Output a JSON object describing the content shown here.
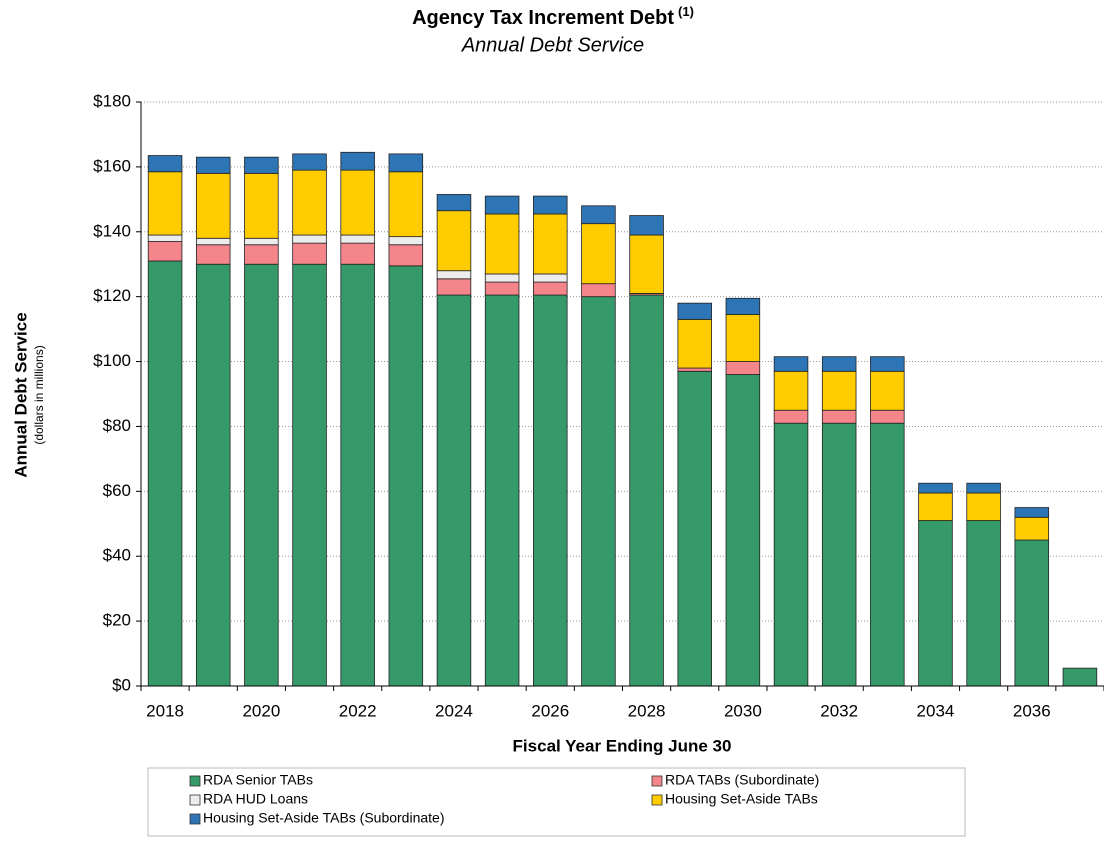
{
  "chart_data": {
    "type": "stacked_bar",
    "title": "Agency Tax Increment Debt",
    "title_note": "(1)",
    "subtitle": "Annual Debt Service",
    "y_label": "Annual Debt Service",
    "y_sublabel": "(dollars in millions)",
    "x_label": "Fiscal Year Ending June 30",
    "categories": [
      "2018",
      null,
      "2020",
      null,
      "2022",
      null,
      "2024",
      null,
      "2026",
      null,
      "2028",
      null,
      "2030",
      null,
      "2032",
      null,
      "2034",
      null,
      "2036",
      null
    ],
    "series": [
      {
        "name": "RDA Senior TABs",
        "color": "#36996a",
        "values": [
          131,
          130,
          130,
          130,
          130,
          129.5,
          120.5,
          120.5,
          120.5,
          120,
          120.5,
          97,
          96,
          81,
          81,
          81,
          51,
          51,
          45,
          5.5
        ]
      },
      {
        "name": "RDA TABs (Subordinate)",
        "color": "#f4858a",
        "values": [
          6,
          6,
          6,
          6.5,
          6.5,
          6.5,
          5,
          4,
          4,
          4,
          0.5,
          1,
          4,
          4,
          4,
          4,
          0,
          0,
          0,
          0
        ]
      },
      {
        "name": "RDA HUD Loans",
        "color": "#ececec",
        "values": [
          2,
          2,
          2,
          2.5,
          2.5,
          2.5,
          2.5,
          2.5,
          2.5,
          0,
          0,
          0,
          0,
          0,
          0,
          0,
          0,
          0,
          0,
          0
        ]
      },
      {
        "name": "Housing Set-Aside TABs",
        "color": "#ffcc00",
        "values": [
          19.5,
          20,
          20,
          20,
          20,
          20,
          18.5,
          18.5,
          18.5,
          18.5,
          18,
          15,
          14.5,
          12,
          12,
          12,
          8.5,
          8.5,
          7,
          0
        ]
      },
      {
        "name": "Housing Set-Aside TABs (Subordinate)",
        "color": "#2e75b6",
        "values": [
          5,
          5,
          5,
          5,
          5.5,
          5.5,
          5,
          5.5,
          5.5,
          5.5,
          6,
          5,
          5,
          4.5,
          4.5,
          4.5,
          3,
          3,
          3,
          0
        ]
      }
    ],
    "ylim": [
      0,
      180
    ],
    "yticks": [
      {
        "value": 0,
        "label": "$0"
      },
      {
        "value": 20,
        "label": "$20"
      },
      {
        "value": 40,
        "label": "$40"
      },
      {
        "value": 60,
        "label": "$60"
      },
      {
        "value": 80,
        "label": "$80"
      },
      {
        "value": 100,
        "label": "$100"
      },
      {
        "value": 120,
        "label": "$120"
      },
      {
        "value": 140,
        "label": "$140"
      },
      {
        "value": 160,
        "label": "$160"
      },
      {
        "value": 180,
        "label": "$180"
      }
    ],
    "grid": true
  }
}
